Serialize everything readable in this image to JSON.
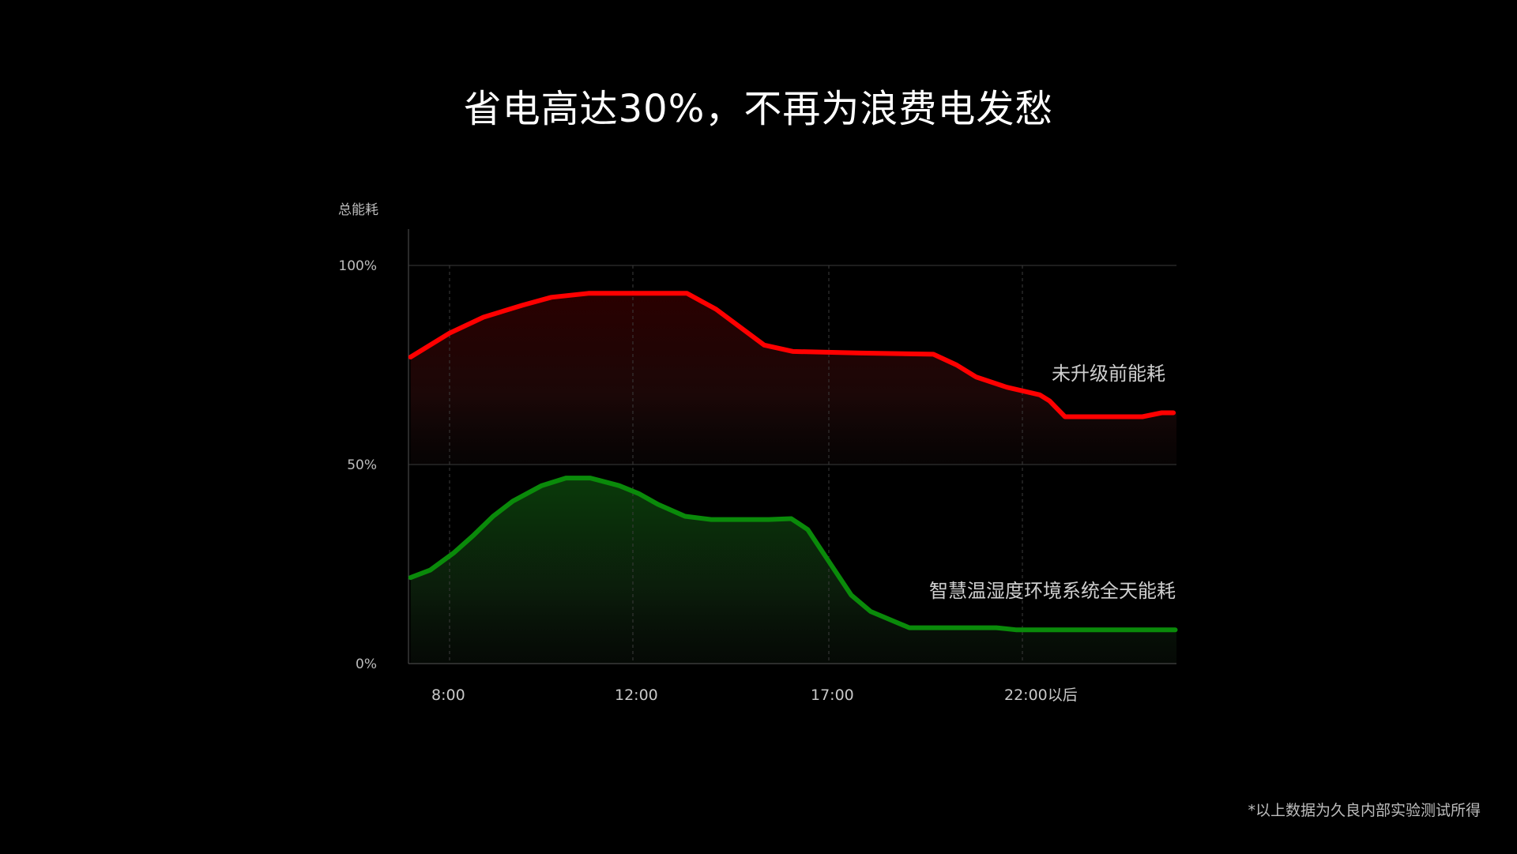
{
  "title": "省电高达30%，不再为浪费电发愁",
  "footnote": "*以上数据为久良内部实验测试所得",
  "chart_data": {
    "type": "line",
    "title": "省电高达30%，不再为浪费电发愁",
    "ylabel": "总能耗",
    "xlabel": "",
    "x_ticks": [
      {
        "value": 8,
        "label": "8:00"
      },
      {
        "value": 12,
        "label": "12:00"
      },
      {
        "value": 17,
        "label": "17:00"
      },
      {
        "value": 22,
        "label": "22:00以后"
      }
    ],
    "y_ticks": [
      {
        "value": 100,
        "label": "100%"
      },
      {
        "value": 50,
        "label": "50%"
      },
      {
        "value": 0,
        "label": "0%"
      }
    ],
    "ylim": [
      0,
      100
    ],
    "xlim": [
      7.1,
      26
    ],
    "grid": "horizontal solid at 50/100, vertical dashed at x ticks",
    "legend": "inline labels at right",
    "series": [
      {
        "name": "未升级前能耗",
        "color": "#ff0000",
        "x": [
          7.15,
          8,
          8.74,
          9.59,
          10.22,
          11.03,
          13.38,
          14.12,
          15.35,
          16.09,
          17.83,
          19.7,
          20.3,
          20.8,
          21.6,
          22.45,
          22.7,
          23.1,
          25.1,
          25.6,
          25.9
        ],
        "y": [
          77,
          83,
          87,
          90,
          92,
          93,
          93,
          89,
          80,
          78.4,
          78,
          77.7,
          75,
          72,
          69.4,
          67.5,
          66,
          62,
          62,
          63,
          63
        ]
      },
      {
        "name": "智慧温湿度环境系统全天能耗",
        "color": "#0a8a0a",
        "x": [
          7.15,
          7.58,
          8.1,
          8.53,
          8.95,
          9.38,
          10.01,
          10.54,
          11.07,
          11.7,
          12.15,
          12.64,
          13.33,
          14,
          15.47,
          16.04,
          16.46,
          17.08,
          17.58,
          18.08,
          19.08,
          21.33,
          21.83,
          25.95
        ],
        "y": [
          21.6,
          23.5,
          27.9,
          32.3,
          37,
          40.8,
          44.7,
          46.6,
          46.6,
          44.7,
          42.7,
          40,
          37,
          36.2,
          36.2,
          36.4,
          33.7,
          24.5,
          17.2,
          13.1,
          9,
          9,
          8.5,
          8.5
        ]
      }
    ]
  }
}
